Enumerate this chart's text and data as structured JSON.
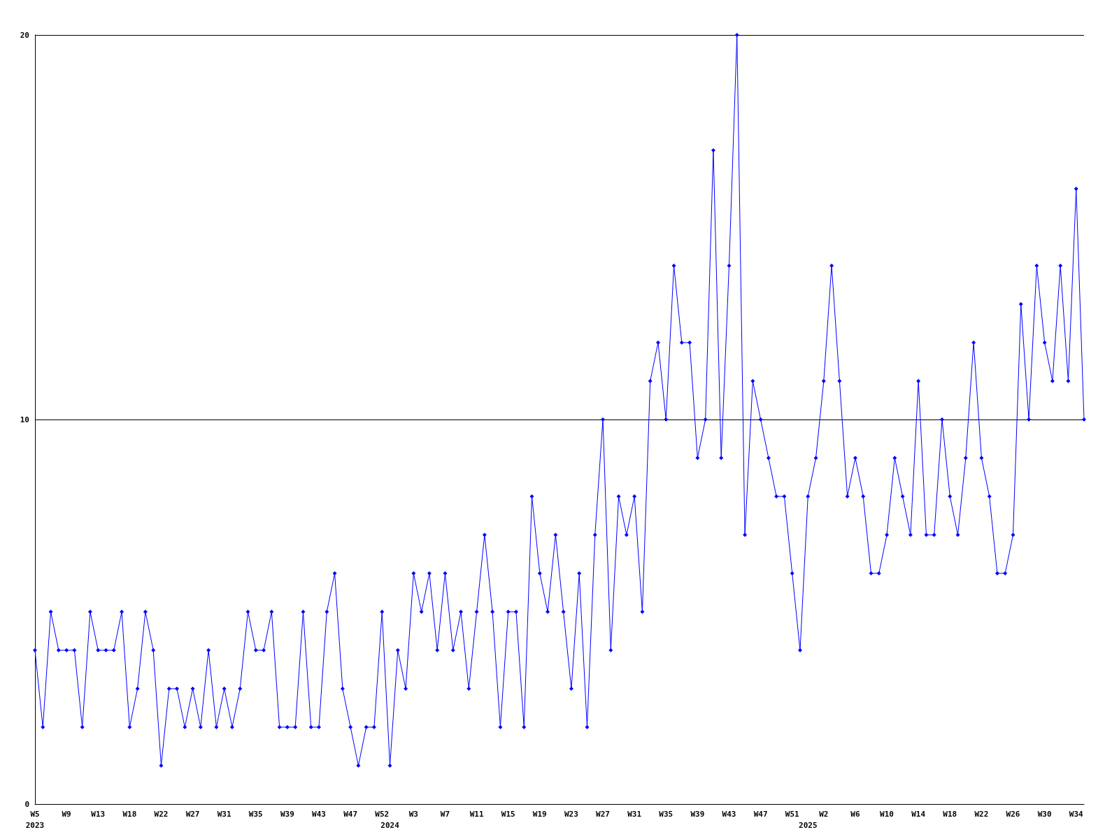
{
  "chart_data": {
    "type": "line",
    "categories": [
      "W5\n2023",
      null,
      null,
      null,
      "W9",
      null,
      null,
      null,
      "W13",
      null,
      null,
      null,
      "W18",
      null,
      null,
      null,
      "W22",
      null,
      null,
      null,
      "W27",
      null,
      null,
      null,
      "W31",
      null,
      null,
      null,
      "W35",
      null,
      null,
      null,
      "W39",
      null,
      null,
      null,
      "W43",
      null,
      null,
      null,
      "W47",
      null,
      null,
      null,
      "W52",
      "\n2024",
      null,
      null,
      "W3",
      null,
      null,
      null,
      "W7",
      null,
      null,
      null,
      "W11",
      null,
      null,
      null,
      "W15",
      null,
      null,
      null,
      "W19",
      null,
      null,
      null,
      "W23",
      null,
      null,
      null,
      "W27",
      null,
      null,
      null,
      "W31",
      null,
      null,
      null,
      "W35",
      null,
      null,
      null,
      "W39",
      null,
      null,
      null,
      "W43",
      null,
      null,
      null,
      "W47",
      null,
      null,
      null,
      "W51",
      null,
      "\n2025",
      null,
      "W2",
      null,
      null,
      null,
      "W6",
      null,
      null,
      null,
      "W10",
      null,
      null,
      null,
      "W14",
      null,
      null,
      null,
      "W18",
      null,
      null,
      null,
      "W22",
      null,
      null,
      null,
      "W26",
      null,
      null,
      null,
      "W30",
      null,
      null,
      null,
      "W34",
      null
    ],
    "series": [
      {
        "color": "#0000ff",
        "values": [
          4,
          2,
          5,
          4,
          4,
          4,
          2,
          5,
          4,
          4,
          4,
          5,
          2,
          3,
          5,
          4,
          1,
          3,
          3,
          2,
          3,
          2,
          4,
          2,
          3,
          2,
          3,
          5,
          4,
          4,
          5,
          2,
          2,
          2,
          5,
          2,
          2,
          5,
          6,
          3,
          2,
          1,
          2,
          2,
          5,
          1,
          4,
          3,
          6,
          5,
          6,
          4,
          6,
          4,
          5,
          3,
          5,
          7,
          5,
          2,
          5,
          5,
          2,
          8,
          6,
          5,
          7,
          5,
          3,
          6,
          2,
          7,
          10,
          4,
          8,
          7,
          8,
          5,
          11,
          12,
          10,
          14,
          12,
          12,
          9,
          10,
          17,
          9,
          14,
          20,
          7,
          11,
          10,
          9,
          8,
          8,
          6,
          4,
          8,
          9,
          11,
          14,
          11,
          8,
          9,
          8,
          6,
          6,
          7,
          9,
          8,
          7,
          11,
          7,
          7,
          10,
          8,
          7,
          9,
          12,
          9,
          8,
          6,
          6,
          7,
          13,
          10,
          14,
          12,
          11,
          14,
          11,
          16,
          10
        ]
      }
    ],
    "ylim": [
      0,
      20
    ],
    "yticks": [
      0,
      10,
      20
    ],
    "grid": "y",
    "marker": "diamond",
    "line_style": "solid"
  }
}
